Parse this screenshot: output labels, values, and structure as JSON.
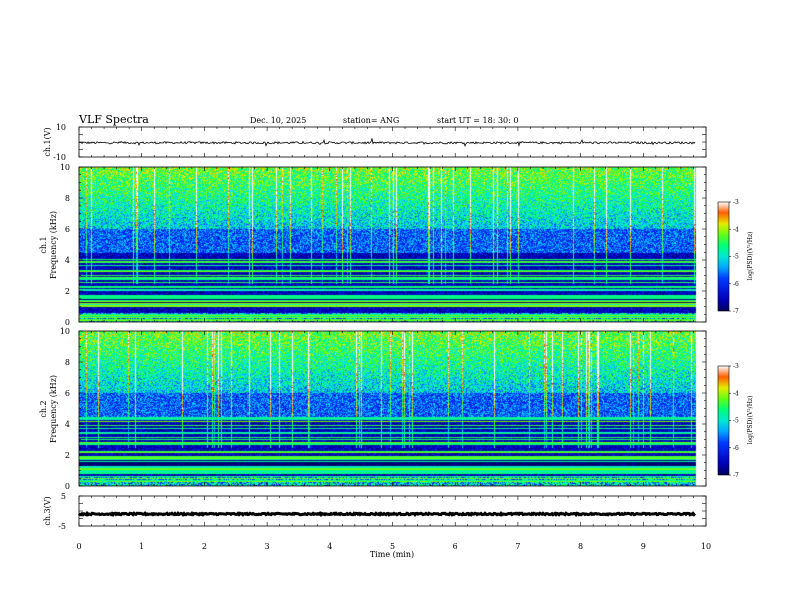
{
  "header": {
    "title": "VLF Spectra",
    "date": "Dec. 10, 2025",
    "station": "station= ANG",
    "start": "start  UT =   18: 30: 0"
  },
  "colors": {
    "frame": "#000000",
    "background": "#ffffff",
    "colormap": [
      "#000080",
      "#0000ff",
      "#00ffff",
      "#00ff00",
      "#ffff00",
      "#ff0000",
      "#ffffff"
    ]
  },
  "chart_data": [
    {
      "type": "line",
      "name": "ch1-waveform",
      "ylabel": "ch.1(V)",
      "ylim": [
        -10,
        10
      ],
      "yticks": [
        "10",
        "-10"
      ],
      "mean": -0.5,
      "amplitude": 0.7
    },
    {
      "type": "heatmap",
      "name": "ch1-spectrogram",
      "ylabel_line1": "ch.1",
      "ylabel_line2": "Frequency (kHz)",
      "ylim": [
        0,
        10
      ],
      "yticks": [
        "0",
        "2",
        "4",
        "6",
        "8",
        "10"
      ],
      "colorbar": {
        "label": "log(PSD)(V²/Hz)",
        "range": [
          -7,
          -3
        ],
        "ticks": [
          "-3",
          "-4",
          "-5",
          "-6",
          "-7"
        ]
      }
    },
    {
      "type": "heatmap",
      "name": "ch2-spectrogram",
      "ylabel_line1": "ch.2",
      "ylabel_line2": "Frequency (kHz)",
      "ylim": [
        0,
        10
      ],
      "yticks": [
        "0",
        "2",
        "4",
        "6",
        "8",
        "10"
      ],
      "colorbar": {
        "label": "log(PSD)(V²/Hz)",
        "range": [
          -7,
          -3
        ],
        "ticks": [
          "-3",
          "-4",
          "-5",
          "-6",
          "-7"
        ]
      }
    },
    {
      "type": "line",
      "name": "ch3-waveform",
      "ylabel": "ch.3(V)",
      "ylim": [
        -5,
        5
      ],
      "yticks": [
        "5",
        "0",
        "-5"
      ],
      "mean": -1.0,
      "amplitude": 0.25
    }
  ],
  "xaxis": {
    "label": "Time (min)",
    "range": [
      0,
      10
    ],
    "data_end": 9.83,
    "ticks": [
      "0",
      "1",
      "2",
      "3",
      "4",
      "5",
      "6",
      "7",
      "8",
      "9",
      "10"
    ]
  }
}
